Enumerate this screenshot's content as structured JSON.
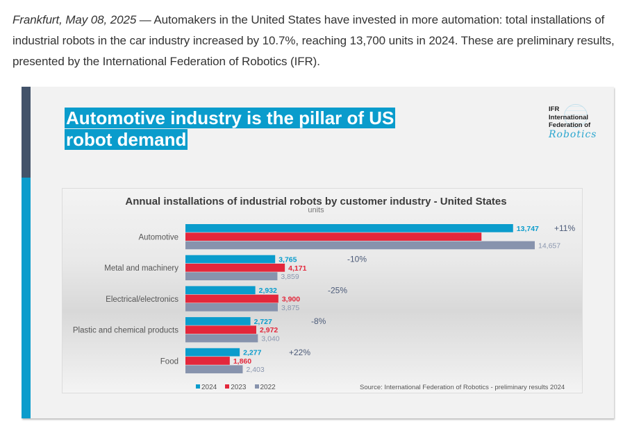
{
  "article": {
    "dateline": "Frankfurt, May 08, 2025",
    "dash": " — ",
    "body": "Automakers in the United States have invested in more automation: total installations of industrial robots in the car industry increased by 10.7%, reaching 13,700 units in 2024. These are preliminary results, presented by the International Federation of Robotics (IFR)."
  },
  "slide": {
    "title_line1": "Automotive industry is the pillar of US",
    "title_line2": "robot demand",
    "logo": {
      "line1": "IFR",
      "line2": "International",
      "line3": "Federation of",
      "line4": "Robotics",
      "icon": "globe-icon"
    },
    "colors": {
      "accent": "#0a9ccc",
      "dark_stripe": "#43536a"
    }
  },
  "chart_data": {
    "type": "bar",
    "orientation": "horizontal",
    "title": "Annual installations of industrial robots by customer industry - United States",
    "subtitle": "units",
    "categories": [
      "Automotive",
      "Metal and machinery",
      "Electrical/electronics",
      "Plastic and chemical products",
      "Food"
    ],
    "series": [
      {
        "name": "2024",
        "color": "#0a9ccc",
        "values": [
          13747,
          3765,
          2932,
          2727,
          2277
        ],
        "labels": [
          "13,747",
          "3,765",
          "2,932",
          "2,727",
          "2,277"
        ]
      },
      {
        "name": "2023",
        "color": "#e3273b",
        "values": [
          12421,
          4171,
          3900,
          2972,
          1860
        ],
        "labels": [
          "12,421",
          "4,171",
          "3,900",
          "2,972",
          "1,860"
        ]
      },
      {
        "name": "2022",
        "color": "#8793ad",
        "values": [
          14657,
          3859,
          3875,
          3040,
          2403
        ],
        "labels": [
          "14,657",
          "3,859",
          "3,875",
          "3,040",
          "2,403"
        ]
      }
    ],
    "changes": [
      "+11%",
      "-10%",
      "-25%",
      "-8%",
      "+22%"
    ],
    "xlim": [
      0,
      15000
    ],
    "grid": false,
    "legend_position": "bottom-left",
    "source": "Source: International Federation of Robotics - preliminary results 2024"
  }
}
